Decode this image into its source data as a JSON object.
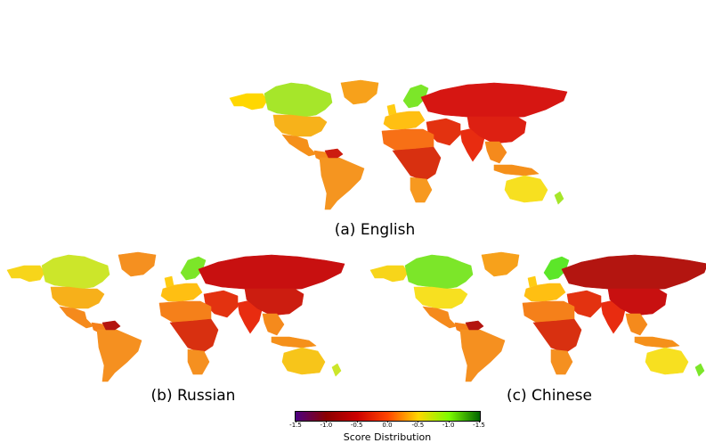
{
  "chart_data": [
    {
      "type": "choropleth-map",
      "caption": "(a) English",
      "regions": [
        {
          "name": "Alaska",
          "color": "#ffd700"
        },
        {
          "name": "Canada",
          "color": "#a6e62a"
        },
        {
          "name": "Greenland",
          "color": "#f7a11b"
        },
        {
          "name": "USA",
          "color": "#f7b21a"
        },
        {
          "name": "Mexico",
          "color": "#f5901a"
        },
        {
          "name": "Central America",
          "color": "#f58a1c"
        },
        {
          "name": "South America",
          "color": "#f59520"
        },
        {
          "name": "Venezuela",
          "color": "#cc1d10"
        },
        {
          "name": "Western Europe",
          "color": "#ffbf12"
        },
        {
          "name": "UK",
          "color": "#ffcc12"
        },
        {
          "name": "Scandinavia",
          "color": "#7ce629"
        },
        {
          "name": "Russia",
          "color": "#d61612"
        },
        {
          "name": "Middle East",
          "color": "#e33210"
        },
        {
          "name": "North Africa",
          "color": "#f77016"
        },
        {
          "name": "Central Africa",
          "color": "#d83010"
        },
        {
          "name": "Southern Africa",
          "color": "#f79920"
        },
        {
          "name": "India",
          "color": "#e82c10"
        },
        {
          "name": "China",
          "color": "#dd2012"
        },
        {
          "name": "Southeast Asia",
          "color": "#f58a1c"
        },
        {
          "name": "Indonesia",
          "color": "#f5901a"
        },
        {
          "name": "Australia",
          "color": "#f7e020"
        },
        {
          "name": "New Zealand",
          "color": "#a6e62a"
        }
      ]
    },
    {
      "type": "choropleth-map",
      "caption": "(b) Russian",
      "regions": [
        {
          "name": "Alaska",
          "color": "#f7d51a"
        },
        {
          "name": "Canada",
          "color": "#cce62a"
        },
        {
          "name": "Greenland",
          "color": "#f59020"
        },
        {
          "name": "USA",
          "color": "#f7b01a"
        },
        {
          "name": "Mexico",
          "color": "#f58a1c"
        },
        {
          "name": "Central America",
          "color": "#f5801a"
        },
        {
          "name": "South America",
          "color": "#f59020"
        },
        {
          "name": "Venezuela",
          "color": "#b31510"
        },
        {
          "name": "Western Europe",
          "color": "#ffbf12"
        },
        {
          "name": "UK",
          "color": "#ffcc12"
        },
        {
          "name": "Scandinavia",
          "color": "#7ce629"
        },
        {
          "name": "Russia",
          "color": "#c81010"
        },
        {
          "name": "Middle East",
          "color": "#e33210"
        },
        {
          "name": "North Africa",
          "color": "#f5801a"
        },
        {
          "name": "Central Africa",
          "color": "#d83010"
        },
        {
          "name": "Southern Africa",
          "color": "#f59020"
        },
        {
          "name": "India",
          "color": "#e82c10"
        },
        {
          "name": "China",
          "color": "#cc1d10"
        },
        {
          "name": "Southeast Asia",
          "color": "#f58a1c"
        },
        {
          "name": "Indonesia",
          "color": "#f5901a"
        },
        {
          "name": "Australia",
          "color": "#f7c51a"
        },
        {
          "name": "New Zealand",
          "color": "#cce62a"
        }
      ]
    },
    {
      "type": "choropleth-map",
      "caption": "(c) Chinese",
      "regions": [
        {
          "name": "Alaska",
          "color": "#f7d51a"
        },
        {
          "name": "Canada",
          "color": "#7ce629"
        },
        {
          "name": "Greenland",
          "color": "#f7a11b"
        },
        {
          "name": "USA",
          "color": "#f7e020"
        },
        {
          "name": "Mexico",
          "color": "#f58a1c"
        },
        {
          "name": "Central America",
          "color": "#f5801a"
        },
        {
          "name": "South America",
          "color": "#f59020"
        },
        {
          "name": "Venezuela",
          "color": "#b31510"
        },
        {
          "name": "Western Europe",
          "color": "#ffbf12"
        },
        {
          "name": "UK",
          "color": "#ffcc12"
        },
        {
          "name": "Scandinavia",
          "color": "#5ce629"
        },
        {
          "name": "Russia",
          "color": "#b31510"
        },
        {
          "name": "Middle East",
          "color": "#e33210"
        },
        {
          "name": "North Africa",
          "color": "#f5801a"
        },
        {
          "name": "Central Africa",
          "color": "#d83010"
        },
        {
          "name": "Southern Africa",
          "color": "#f59020"
        },
        {
          "name": "India",
          "color": "#e82c10"
        },
        {
          "name": "China",
          "color": "#c81010"
        },
        {
          "name": "Southeast Asia",
          "color": "#f58a1c"
        },
        {
          "name": "Indonesia",
          "color": "#f5901a"
        },
        {
          "name": "Australia",
          "color": "#f7e020"
        },
        {
          "name": "New Zealand",
          "color": "#7ce629"
        }
      ]
    }
  ],
  "colorbar": {
    "label": "Score Distribution",
    "ticks": [
      "-1.5",
      "-1.0",
      "-0.5",
      "0.0",
      "-0.5",
      "-1.0",
      "-1.5"
    ],
    "stops": [
      "#4b0082",
      "#8b0000",
      "#cc0000",
      "#ff4500",
      "#ffd700",
      "#7cfc00",
      "#006400"
    ]
  }
}
